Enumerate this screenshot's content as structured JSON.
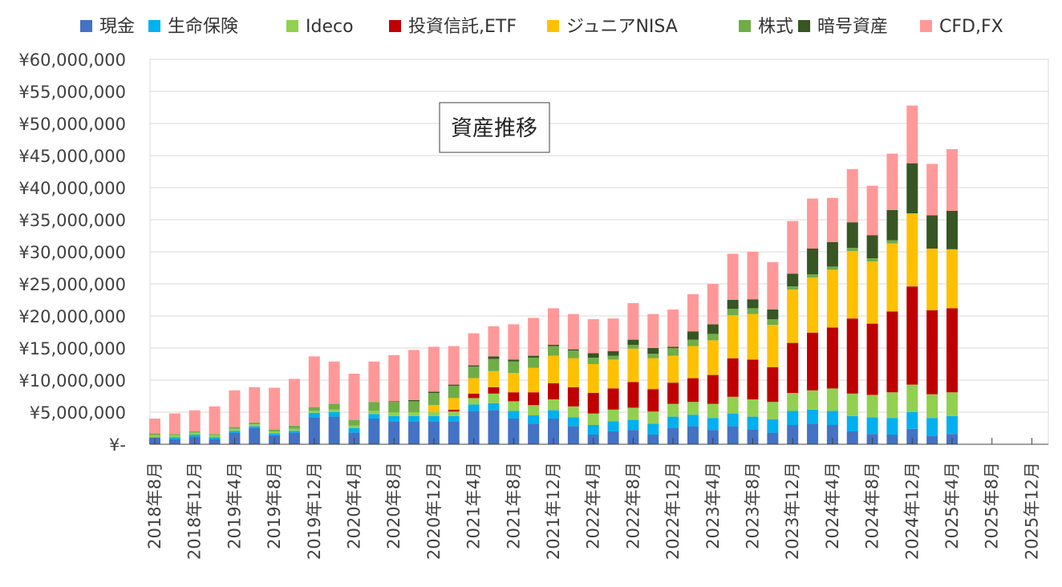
{
  "chart_data": {
    "type": "bar",
    "stacked": true,
    "title": "資産推移",
    "xlabel": "",
    "ylabel": "",
    "ylim": [
      0,
      60000000
    ],
    "y_ticks": [
      "¥-",
      "¥5,000,000",
      "¥10,000,000",
      "¥15,000,000",
      "¥20,000,000",
      "¥25,000,000",
      "¥30,000,000",
      "¥35,000,000",
      "¥40,000,000",
      "¥45,000,000",
      "¥50,000,000",
      "¥55,000,000",
      "¥60,000,000"
    ],
    "x_tick_labels": [
      "2018年8月",
      "2018年12月",
      "2019年4月",
      "2019年8月",
      "2019年12月",
      "2020年4月",
      "2020年8月",
      "2020年12月",
      "2021年4月",
      "2021年8月",
      "2021年12月",
      "2022年4月",
      "2022年8月",
      "2022年12月",
      "2023年4月",
      "2023年8月",
      "2023年12月",
      "2024年4月",
      "2024年8月",
      "2024年12月",
      "2025年4月",
      "2025年8月",
      "2025年12月"
    ],
    "grid": true,
    "legend_position": "top",
    "categories": [
      "2018-08",
      "2018-10",
      "2018-12",
      "2019-02",
      "2019-04",
      "2019-06",
      "2019-08",
      "2019-10",
      "2019-12",
      "2020-02",
      "2020-04",
      "2020-06",
      "2020-08",
      "2020-10",
      "2020-12",
      "2021-02",
      "2021-04",
      "2021-06",
      "2021-08",
      "2021-10",
      "2021-12",
      "2022-02",
      "2022-04",
      "2022-06",
      "2022-08",
      "2022-10",
      "2022-12",
      "2023-02",
      "2023-04",
      "2023-06",
      "2023-08",
      "2023-10",
      "2023-12",
      "2024-02",
      "2024-04",
      "2024-06",
      "2024-08",
      "2024-10",
      "2024-12",
      "2025-02",
      "2025-04",
      "2025-06",
      "2025-08",
      "2025-10",
      "2025-12"
    ],
    "series": [
      {
        "name": "現金",
        "color": "#4472C4",
        "values": [
          1000000,
          800000,
          1200000,
          800000,
          1800000,
          2500000,
          1400000,
          1800000,
          4200000,
          4300000,
          1800000,
          4000000,
          3500000,
          3500000,
          3500000,
          3500000,
          5200000,
          5300000,
          4000000,
          3200000,
          4000000,
          2800000,
          1500000,
          2000000,
          2200000,
          1500000,
          2500000,
          2800000,
          2200000,
          2800000,
          2300000,
          1800000,
          3000000,
          3200000,
          3000000,
          2000000,
          1600000,
          1500000,
          2400000,
          1300000,
          1600000,
          null,
          null,
          null,
          null
        ]
      },
      {
        "name": "生命保険",
        "color": "#00B0F0",
        "values": [
          100000,
          300000,
          300000,
          300000,
          300000,
          300000,
          300000,
          300000,
          700000,
          700000,
          700000,
          700000,
          900000,
          900000,
          900000,
          900000,
          1000000,
          1100000,
          1200000,
          1300000,
          1300000,
          1400000,
          1500000,
          1600000,
          1600000,
          1700000,
          1800000,
          1800000,
          1900000,
          2000000,
          2000000,
          2100000,
          2200000,
          2200000,
          2200000,
          2400000,
          2600000,
          2600000,
          2600000,
          2800000,
          2800000,
          null,
          null,
          null,
          null
        ]
      },
      {
        "name": "Ideco",
        "color": "#92D050",
        "values": [
          300000,
          300000,
          300000,
          300000,
          300000,
          300000,
          300000,
          300000,
          300000,
          400000,
          400000,
          500000,
          600000,
          600000,
          700000,
          700000,
          1000000,
          1500000,
          1500000,
          1600000,
          1700000,
          1700000,
          1800000,
          1800000,
          1900000,
          1900000,
          2000000,
          2000000,
          2200000,
          2600000,
          2700000,
          2700000,
          2800000,
          3000000,
          3500000,
          3500000,
          3500000,
          4000000,
          4300000,
          3700000,
          3700000,
          null,
          null,
          null,
          null
        ]
      },
      {
        "name": "投資信託,ETF",
        "color": "#C00000",
        "values": [
          null,
          null,
          null,
          null,
          null,
          null,
          null,
          null,
          null,
          null,
          null,
          null,
          null,
          null,
          null,
          300000,
          700000,
          1000000,
          1400000,
          2000000,
          2500000,
          3000000,
          3200000,
          3300000,
          4000000,
          3500000,
          3300000,
          3700000,
          4500000,
          6000000,
          6200000,
          5400000,
          7800000,
          9000000,
          9500000,
          11700000,
          11100000,
          12600000,
          15300000,
          13100000,
          13100000,
          null,
          null,
          null,
          null
        ]
      },
      {
        "name": "ジュニアNISA",
        "color": "#FFC000",
        "values": [
          null,
          null,
          null,
          null,
          null,
          null,
          null,
          null,
          null,
          null,
          null,
          null,
          null,
          null,
          1000000,
          1800000,
          2400000,
          2500000,
          3000000,
          3800000,
          4300000,
          4500000,
          4500000,
          4500000,
          5200000,
          4800000,
          4200000,
          5000000,
          5400000,
          6700000,
          7100000,
          6600000,
          8300000,
          8600000,
          9000000,
          10500000,
          9700000,
          10600000,
          11400000,
          9600000,
          9200000,
          null,
          null,
          null,
          null
        ]
      },
      {
        "name": "株式",
        "color": "#70AD47",
        "values": [
          300000,
          200000,
          200000,
          200000,
          300000,
          300000,
          300000,
          500000,
          600000,
          900000,
          900000,
          1400000,
          1600000,
          1700000,
          1900000,
          1900000,
          1800000,
          1900000,
          1800000,
          1600000,
          1500000,
          1200000,
          1000000,
          600000,
          600000,
          700000,
          1200000,
          1000000,
          1000000,
          1000000,
          900000,
          900000,
          500000,
          500000,
          500000,
          500000,
          500000,
          500000,
          null,
          null,
          null,
          null,
          null,
          null,
          null
        ]
      },
      {
        "name": "暗号資産",
        "color": "#375623",
        "values": [
          null,
          null,
          null,
          null,
          null,
          null,
          null,
          null,
          null,
          null,
          null,
          null,
          100000,
          200000,
          200000,
          200000,
          200000,
          400000,
          300000,
          300000,
          200000,
          200000,
          700000,
          700000,
          800000,
          900000,
          200000,
          1300000,
          1500000,
          1400000,
          1400000,
          1500000,
          2000000,
          4000000,
          3800000,
          4000000,
          3600000,
          4700000,
          7800000,
          5200000,
          6000000,
          null,
          null,
          null,
          null
        ]
      },
      {
        "name": "CFD,FX",
        "color": "#FF9999",
        "values": [
          2300000,
          3200000,
          3300000,
          4300000,
          5700000,
          5500000,
          6500000,
          7300000,
          7900000,
          6600000,
          7200000,
          6300000,
          7200000,
          7800000,
          7000000,
          6000000,
          5000000,
          4700000,
          5500000,
          5900000,
          5700000,
          5500000,
          5300000,
          5100000,
          5700000,
          5300000,
          5800000,
          5800000,
          6300000,
          7200000,
          7400000,
          7400000,
          8200000,
          7800000,
          6900000,
          8300000,
          7700000,
          8800000,
          9000000,
          8000000,
          9600000,
          null,
          null,
          null,
          null
        ]
      }
    ]
  }
}
